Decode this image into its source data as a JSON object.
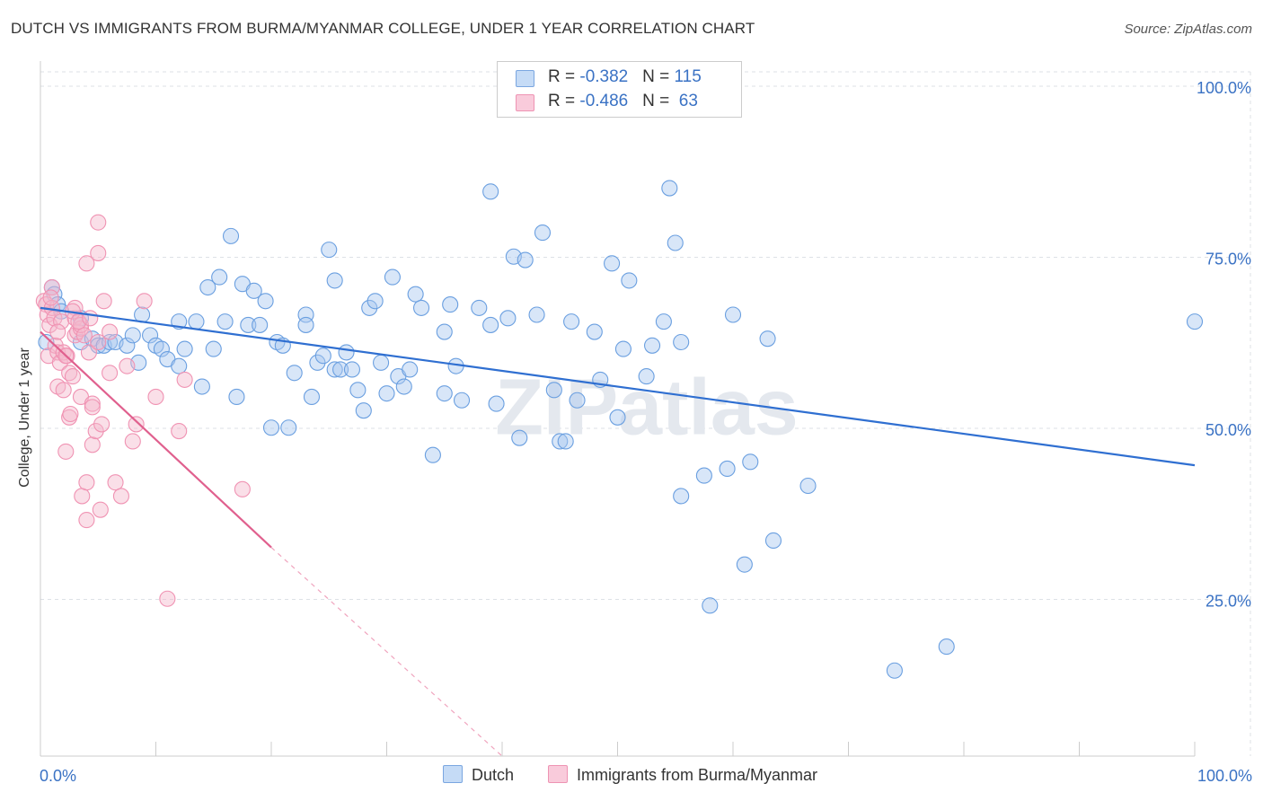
{
  "title": "DUTCH VS IMMIGRANTS FROM BURMA/MYANMAR COLLEGE, UNDER 1 YEAR CORRELATION CHART",
  "source": "Source: ZipAtlas.com",
  "watermark": "ZIPatlas",
  "legend_top": {
    "rows": [
      {
        "r_label": "R = ",
        "r_value": "-0.382",
        "n_label": "N = ",
        "n_value": "115",
        "color": "#a9c8f0"
      },
      {
        "r_label": "R = ",
        "r_value": "-0.486",
        "n_label": "N = ",
        "n_value": " 63",
        "color": "#f5b8cb"
      }
    ]
  },
  "legend_bottom": [
    {
      "label": "Dutch",
      "color": "#a9c8f0"
    },
    {
      "label": "Immigrants from Burma/Myanmar",
      "color": "#f5b8cb"
    }
  ],
  "chart_data": {
    "type": "scatter",
    "title": "DUTCH VS IMMIGRANTS FROM BURMA/MYANMAR COLLEGE, UNDER 1 YEAR CORRELATION CHART",
    "xlabel": "",
    "ylabel": "College, Under 1 year",
    "xlim": [
      0,
      100
    ],
    "ylim": [
      0,
      100
    ],
    "x_tick_labels": [
      "0.0%",
      "100.0%"
    ],
    "y_tick_labels": [
      "100.0%",
      "75.0%",
      "50.0%",
      "25.0%"
    ],
    "y_ticks": [
      100,
      75,
      50,
      25
    ],
    "grid": true,
    "series": [
      {
        "name": "Dutch",
        "color": "#6a9fe0",
        "trend": {
          "x": [
            0,
            100
          ],
          "y": [
            65.5,
            42.5
          ],
          "color": "#2f6fd1"
        },
        "points": [
          [
            0.5,
            60.5
          ],
          [
            1.0,
            68.5
          ],
          [
            1.2,
            67.5
          ],
          [
            1.5,
            66.0
          ],
          [
            1.8,
            65.0
          ],
          [
            3.5,
            64.0
          ],
          [
            3.5,
            60.5
          ],
          [
            4.5,
            61.0
          ],
          [
            5.0,
            60.0
          ],
          [
            5.5,
            60.0
          ],
          [
            6.0,
            60.5
          ],
          [
            6.5,
            60.5
          ],
          [
            7.5,
            60.0
          ],
          [
            8.0,
            61.5
          ],
          [
            8.5,
            57.5
          ],
          [
            8.8,
            64.5
          ],
          [
            9.5,
            61.5
          ],
          [
            10.0,
            60.0
          ],
          [
            10.5,
            59.5
          ],
          [
            11.0,
            58.0
          ],
          [
            12.0,
            57.0
          ],
          [
            12.0,
            63.5
          ],
          [
            12.5,
            59.5
          ],
          [
            13.5,
            63.5
          ],
          [
            14.0,
            54.0
          ],
          [
            14.5,
            68.5
          ],
          [
            15.0,
            59.5
          ],
          [
            15.5,
            70.0
          ],
          [
            16.0,
            63.5
          ],
          [
            16.5,
            76.0
          ],
          [
            17.0,
            52.5
          ],
          [
            17.5,
            69.0
          ],
          [
            18.0,
            63.0
          ],
          [
            18.5,
            68.0
          ],
          [
            19.0,
            63.0
          ],
          [
            19.5,
            66.5
          ],
          [
            20.0,
            48.0
          ],
          [
            20.5,
            60.5
          ],
          [
            21.0,
            60.0
          ],
          [
            21.5,
            48.0
          ],
          [
            22.0,
            56.0
          ],
          [
            23.0,
            64.5
          ],
          [
            23.0,
            63.0
          ],
          [
            23.5,
            52.5
          ],
          [
            24.0,
            57.5
          ],
          [
            24.5,
            58.5
          ],
          [
            25.0,
            74.0
          ],
          [
            25.5,
            69.5
          ],
          [
            25.5,
            56.5
          ],
          [
            26.0,
            56.5
          ],
          [
            26.5,
            59.0
          ],
          [
            27.0,
            56.5
          ],
          [
            27.5,
            53.5
          ],
          [
            28.0,
            50.5
          ],
          [
            28.5,
            65.5
          ],
          [
            29.0,
            66.5
          ],
          [
            29.5,
            57.5
          ],
          [
            30.0,
            53.0
          ],
          [
            30.5,
            70.0
          ],
          [
            31.0,
            55.5
          ],
          [
            31.5,
            54.0
          ],
          [
            32.0,
            56.5
          ],
          [
            32.5,
            67.5
          ],
          [
            33.0,
            65.5
          ],
          [
            34.0,
            44.0
          ],
          [
            35.0,
            53.0
          ],
          [
            35.0,
            62.0
          ],
          [
            35.5,
            66.0
          ],
          [
            36.0,
            57.0
          ],
          [
            36.5,
            52.0
          ],
          [
            38.0,
            65.5
          ],
          [
            39.0,
            82.5
          ],
          [
            39.0,
            63.0
          ],
          [
            39.5,
            51.5
          ],
          [
            40.5,
            64.0
          ],
          [
            41.0,
            73.0
          ],
          [
            41.5,
            46.5
          ],
          [
            42.0,
            72.5
          ],
          [
            43.0,
            64.5
          ],
          [
            43.5,
            76.5
          ],
          [
            44.5,
            53.5
          ],
          [
            45.0,
            46.0
          ],
          [
            45.5,
            46.0
          ],
          [
            46.0,
            63.5
          ],
          [
            46.5,
            52.0
          ],
          [
            48.0,
            62.0
          ],
          [
            48.5,
            55.0
          ],
          [
            49.5,
            72.0
          ],
          [
            50.0,
            49.5
          ],
          [
            50.5,
            59.5
          ],
          [
            51.0,
            69.5
          ],
          [
            52.5,
            55.5
          ],
          [
            53.0,
            60.0
          ],
          [
            54.0,
            63.5
          ],
          [
            54.5,
            83.0
          ],
          [
            55.0,
            75.0
          ],
          [
            55.5,
            60.5
          ],
          [
            55.5,
            38.0
          ],
          [
            57.5,
            41.0
          ],
          [
            58.0,
            22.0
          ],
          [
            59.5,
            42.0
          ],
          [
            60.0,
            64.5
          ],
          [
            61.0,
            28.0
          ],
          [
            61.5,
            43.0
          ],
          [
            63.0,
            61.0
          ],
          [
            63.5,
            31.5
          ],
          [
            66.5,
            39.5
          ],
          [
            74.0,
            12.5
          ],
          [
            78.5,
            16.0
          ],
          [
            100.0,
            63.5
          ]
        ]
      },
      {
        "name": "Immigrants from Burma/Myanmar",
        "color": "#f093b3",
        "trend": {
          "x": [
            0,
            20
          ],
          "y": [
            62.0,
            30.5
          ],
          "dash_to": [
            40,
            0
          ],
          "color": "#e0608e"
        },
        "points": [
          [
            0.3,
            66.5
          ],
          [
            0.5,
            66.0
          ],
          [
            0.6,
            64.5
          ],
          [
            0.7,
            58.5
          ],
          [
            0.8,
            63.0
          ],
          [
            1.0,
            68.5
          ],
          [
            1.0,
            65.5
          ],
          [
            1.2,
            64.0
          ],
          [
            1.3,
            60.0
          ],
          [
            1.5,
            59.0
          ],
          [
            1.5,
            54.0
          ],
          [
            1.7,
            57.5
          ],
          [
            1.8,
            63.5
          ],
          [
            2.0,
            59.0
          ],
          [
            2.0,
            53.5
          ],
          [
            2.2,
            44.5
          ],
          [
            2.3,
            58.5
          ],
          [
            2.5,
            56.0
          ],
          [
            2.5,
            49.5
          ],
          [
            2.6,
            50.0
          ],
          [
            2.8,
            55.5
          ],
          [
            3.0,
            61.5
          ],
          [
            3.0,
            64.0
          ],
          [
            3.0,
            65.5
          ],
          [
            3.2,
            62.0
          ],
          [
            3.5,
            62.5
          ],
          [
            3.5,
            63.0
          ],
          [
            3.5,
            52.5
          ],
          [
            3.6,
            38.0
          ],
          [
            3.8,
            61.5
          ],
          [
            4.0,
            40.0
          ],
          [
            4.0,
            34.5
          ],
          [
            4.0,
            72.0
          ],
          [
            4.2,
            59.0
          ],
          [
            4.5,
            51.5
          ],
          [
            4.5,
            51.0
          ],
          [
            4.5,
            45.5
          ],
          [
            4.8,
            47.5
          ],
          [
            5.0,
            73.5
          ],
          [
            5.0,
            78.0
          ],
          [
            5.0,
            60.5
          ],
          [
            5.2,
            36.0
          ],
          [
            5.3,
            48.5
          ],
          [
            5.5,
            66.5
          ],
          [
            6.0,
            62.0
          ],
          [
            6.0,
            56.0
          ],
          [
            6.5,
            40.0
          ],
          [
            7.0,
            38.0
          ],
          [
            7.5,
            57.0
          ],
          [
            8.0,
            46.0
          ],
          [
            8.3,
            48.5
          ],
          [
            9.0,
            66.5
          ],
          [
            10.0,
            52.5
          ],
          [
            11.0,
            23.0
          ],
          [
            12.0,
            47.5
          ],
          [
            12.5,
            55.0
          ],
          [
            17.5,
            39.0
          ],
          [
            1.5,
            62.0
          ],
          [
            2.8,
            65.0
          ],
          [
            0.9,
            67.0
          ],
          [
            2.2,
            58.5
          ],
          [
            3.3,
            63.5
          ],
          [
            4.3,
            64.0
          ]
        ]
      }
    ]
  }
}
